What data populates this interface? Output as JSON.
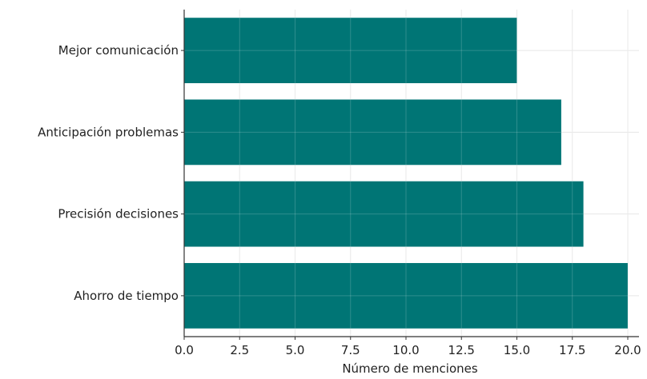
{
  "chart_data": {
    "type": "bar",
    "orientation": "horizontal",
    "title": "",
    "xlabel": "Número de menciones",
    "ylabel": "",
    "categories": [
      "Ahorro de tiempo",
      "Precisión decisiones",
      "Anticipación problemas",
      "Mejor comunicación"
    ],
    "values": [
      20,
      18,
      17,
      15
    ],
    "xlim": [
      0,
      20
    ],
    "xticks": [
      "0.0",
      "2.5",
      "5.0",
      "7.5",
      "10.0",
      "12.5",
      "15.0",
      "17.5",
      "20.0"
    ],
    "grid": true,
    "bar_color": "#007575"
  }
}
